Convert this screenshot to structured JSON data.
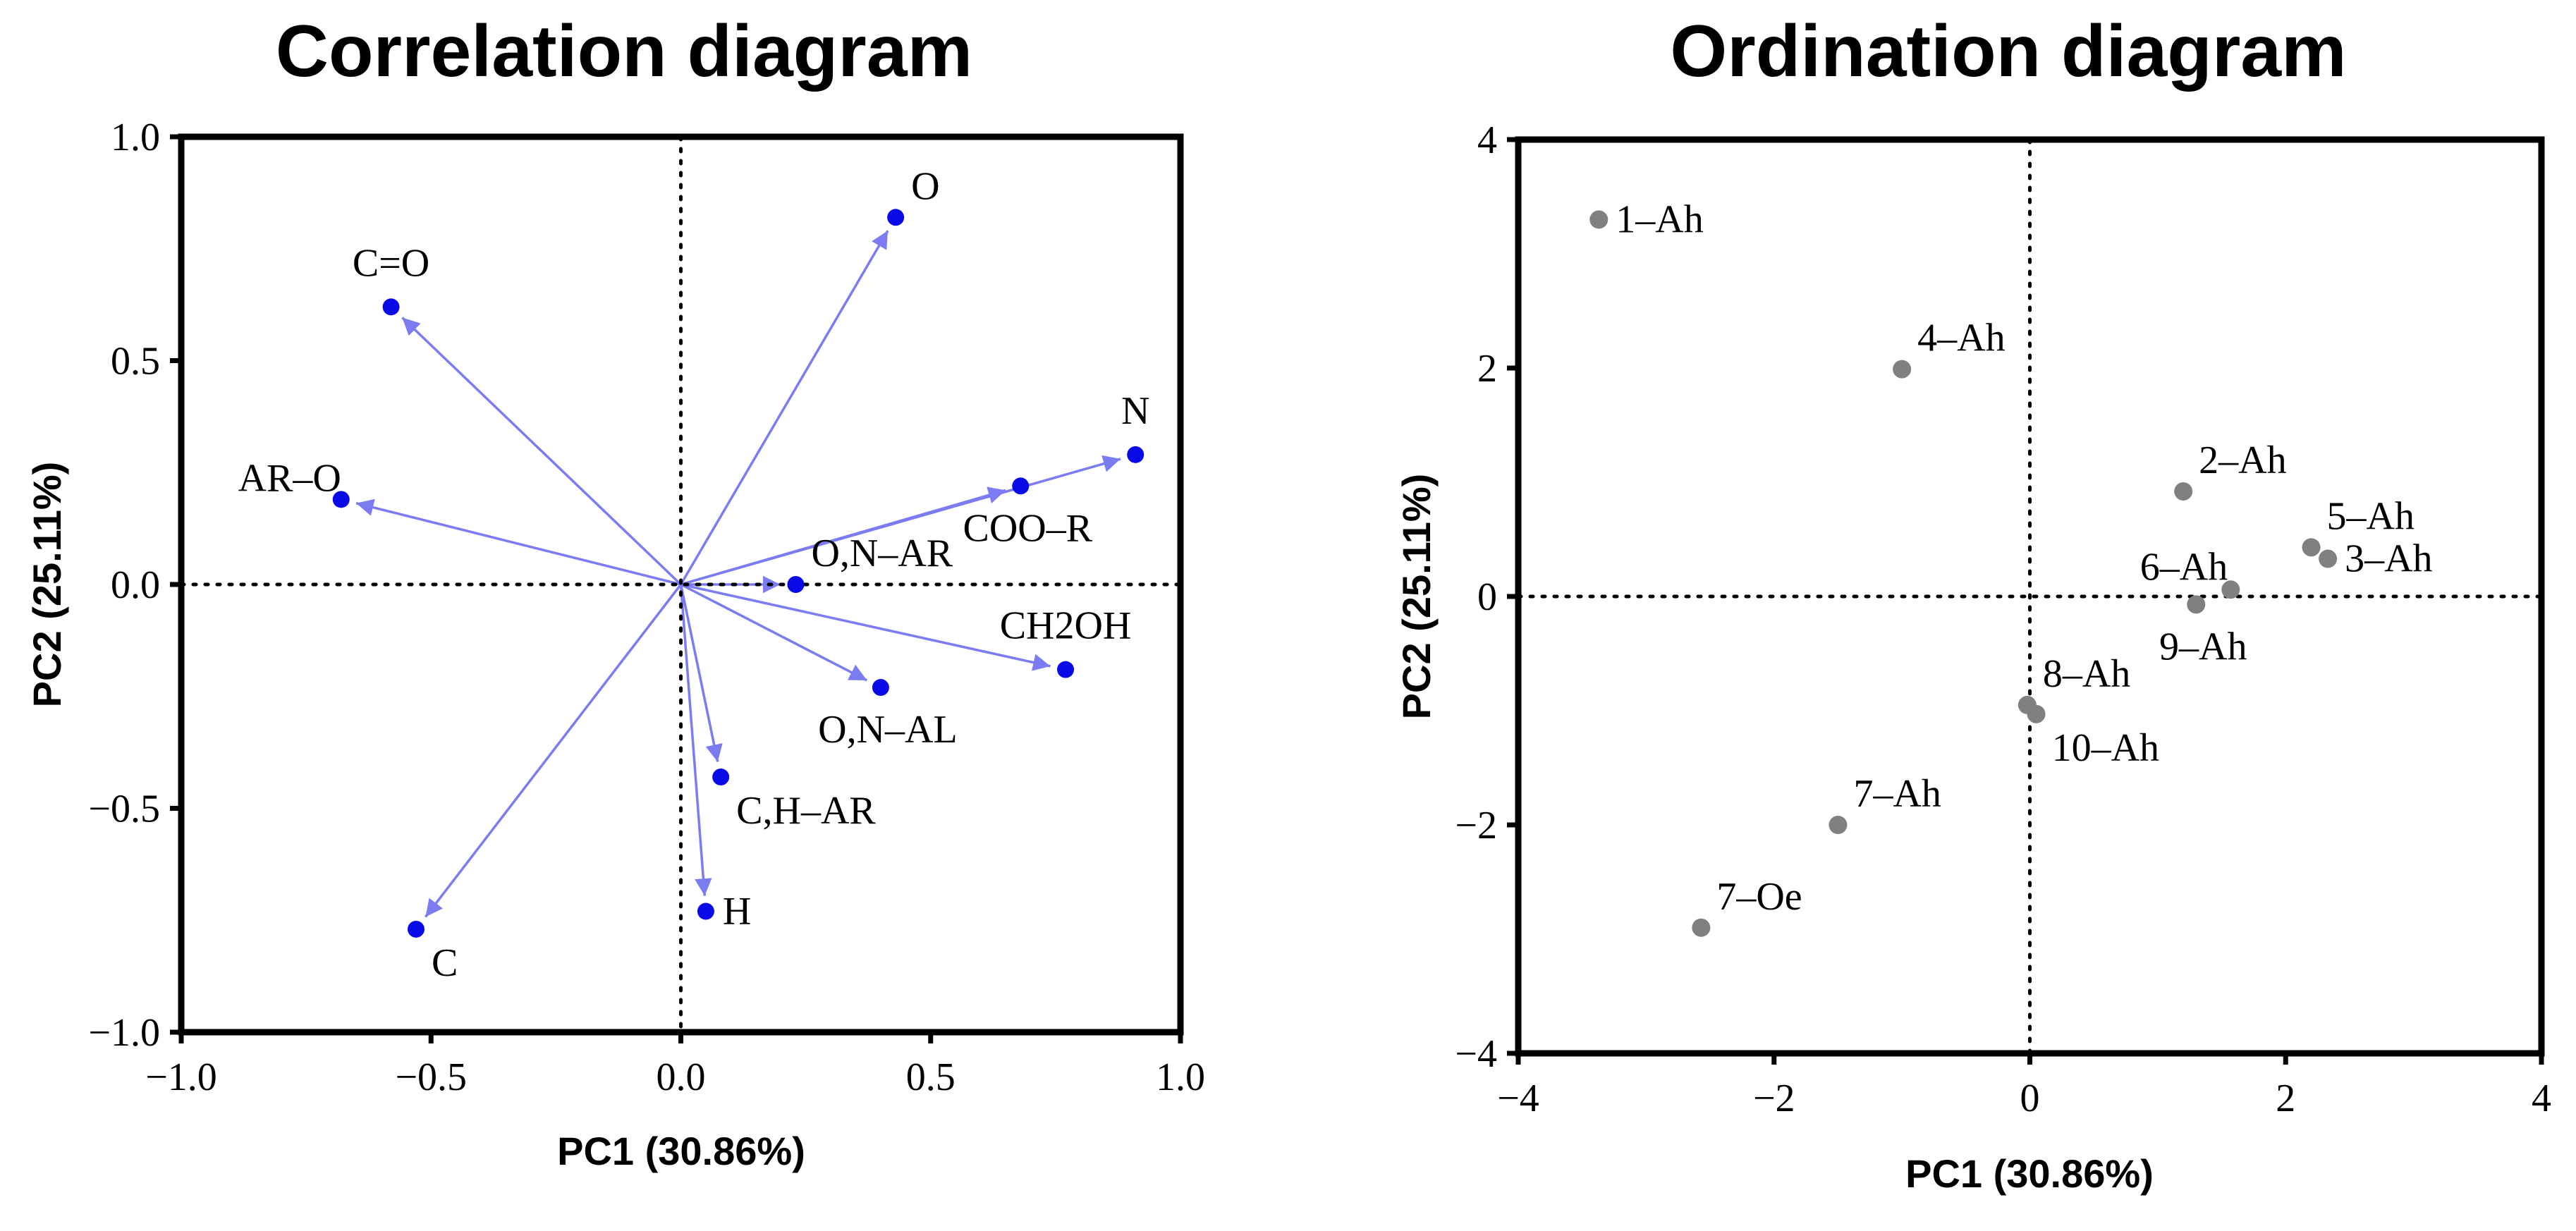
{
  "colors": {
    "variable": "#0a0ae8",
    "vector": "#7b7bf2",
    "sample": "#808080",
    "axis": "#000000"
  },
  "chart_data": [
    {
      "type": "scatter",
      "subtype": "biplot-loadings",
      "title": "Correlation diagram",
      "xlabel": "PC1 (30.86%)",
      "ylabel": "PC2 (25.11%)",
      "xlim": [
        -1.0,
        1.0
      ],
      "ylim": [
        -1.0,
        1.0
      ],
      "xticks": [
        -1.0,
        -0.5,
        0.0,
        0.5,
        1.0
      ],
      "yticks": [
        -1.0,
        -0.5,
        0.0,
        0.5,
        1.0
      ],
      "xtick_labels": [
        "−1.0",
        "−0.5",
        "0.0",
        "0.5",
        "1.0"
      ],
      "ytick_labels": [
        "−1.0",
        "−0.5",
        "0.0",
        "0.5",
        "1.0"
      ],
      "grid": false,
      "zero_lines": true,
      "points": [
        {
          "label": "O",
          "x": 0.43,
          "y": 0.82,
          "label_pos": "ur",
          "label_scale": 1.3
        },
        {
          "label": "C=O",
          "x": -0.58,
          "y": 0.62,
          "label_pos": "u"
        },
        {
          "label": "AR–O",
          "x": -0.68,
          "y": 0.19,
          "label_pos": "u2"
        },
        {
          "label": "N",
          "x": 0.91,
          "y": 0.29,
          "label_pos": "u"
        },
        {
          "label": "COO–R",
          "x": 0.68,
          "y": 0.22,
          "label_pos": "d"
        },
        {
          "label": "O,N–AR",
          "x": 0.23,
          "y": 0.0,
          "label_pos": "ur"
        },
        {
          "label": "CH2OH",
          "x": 0.77,
          "y": -0.19,
          "label_pos": "u"
        },
        {
          "label": "O,N–AL",
          "x": 0.4,
          "y": -0.23,
          "label_pos": "d"
        },
        {
          "label": "C,H–AR",
          "x": 0.08,
          "y": -0.43,
          "label_pos": "dr"
        },
        {
          "label": "H",
          "x": 0.05,
          "y": -0.73,
          "label_pos": "r"
        },
        {
          "label": "C",
          "x": -0.53,
          "y": -0.77,
          "label_pos": "dr"
        }
      ]
    },
    {
      "type": "scatter",
      "title": "Ordination diagram",
      "xlabel": "PC1 (30.86%)",
      "ylabel": "PC2 (25.11%)",
      "xlim": [
        -4,
        4
      ],
      "ylim": [
        -4,
        4
      ],
      "xticks": [
        -4,
        -2,
        0,
        2,
        4
      ],
      "yticks": [
        -4,
        -2,
        0,
        2,
        4
      ],
      "xtick_labels": [
        "−4",
        "−2",
        "0",
        "2",
        "4"
      ],
      "ytick_labels": [
        "−4",
        "−2",
        "0",
        "2",
        "4"
      ],
      "grid": false,
      "zero_lines": true,
      "points": [
        {
          "label": "1–Ah",
          "x": -3.37,
          "y": 3.3,
          "label_pos": "r"
        },
        {
          "label": "4–Ah",
          "x": -1.0,
          "y": 1.99,
          "label_pos": "ur"
        },
        {
          "label": "2–Ah",
          "x": 1.2,
          "y": 0.92,
          "label_pos": "ur"
        },
        {
          "label": "5–Ah",
          "x": 2.2,
          "y": 0.43,
          "label_pos": "ur"
        },
        {
          "label": "3–Ah",
          "x": 2.33,
          "y": 0.33,
          "label_pos": "r"
        },
        {
          "label": "6–Ah",
          "x": 1.57,
          "y": 0.06,
          "label_pos": "ul"
        },
        {
          "label": "9–Ah",
          "x": 1.3,
          "y": -0.07,
          "label_pos": "d"
        },
        {
          "label": "8–Ah",
          "x": -0.02,
          "y": -0.95,
          "label_pos": "ur"
        },
        {
          "label": "10–Ah",
          "x": 0.05,
          "y": -1.03,
          "label_pos": "dr"
        },
        {
          "label": "7–Ah",
          "x": -1.5,
          "y": -2.0,
          "label_pos": "ur"
        },
        {
          "label": "7–Oe",
          "x": -2.57,
          "y": -2.9,
          "label_pos": "ur"
        }
      ]
    }
  ]
}
